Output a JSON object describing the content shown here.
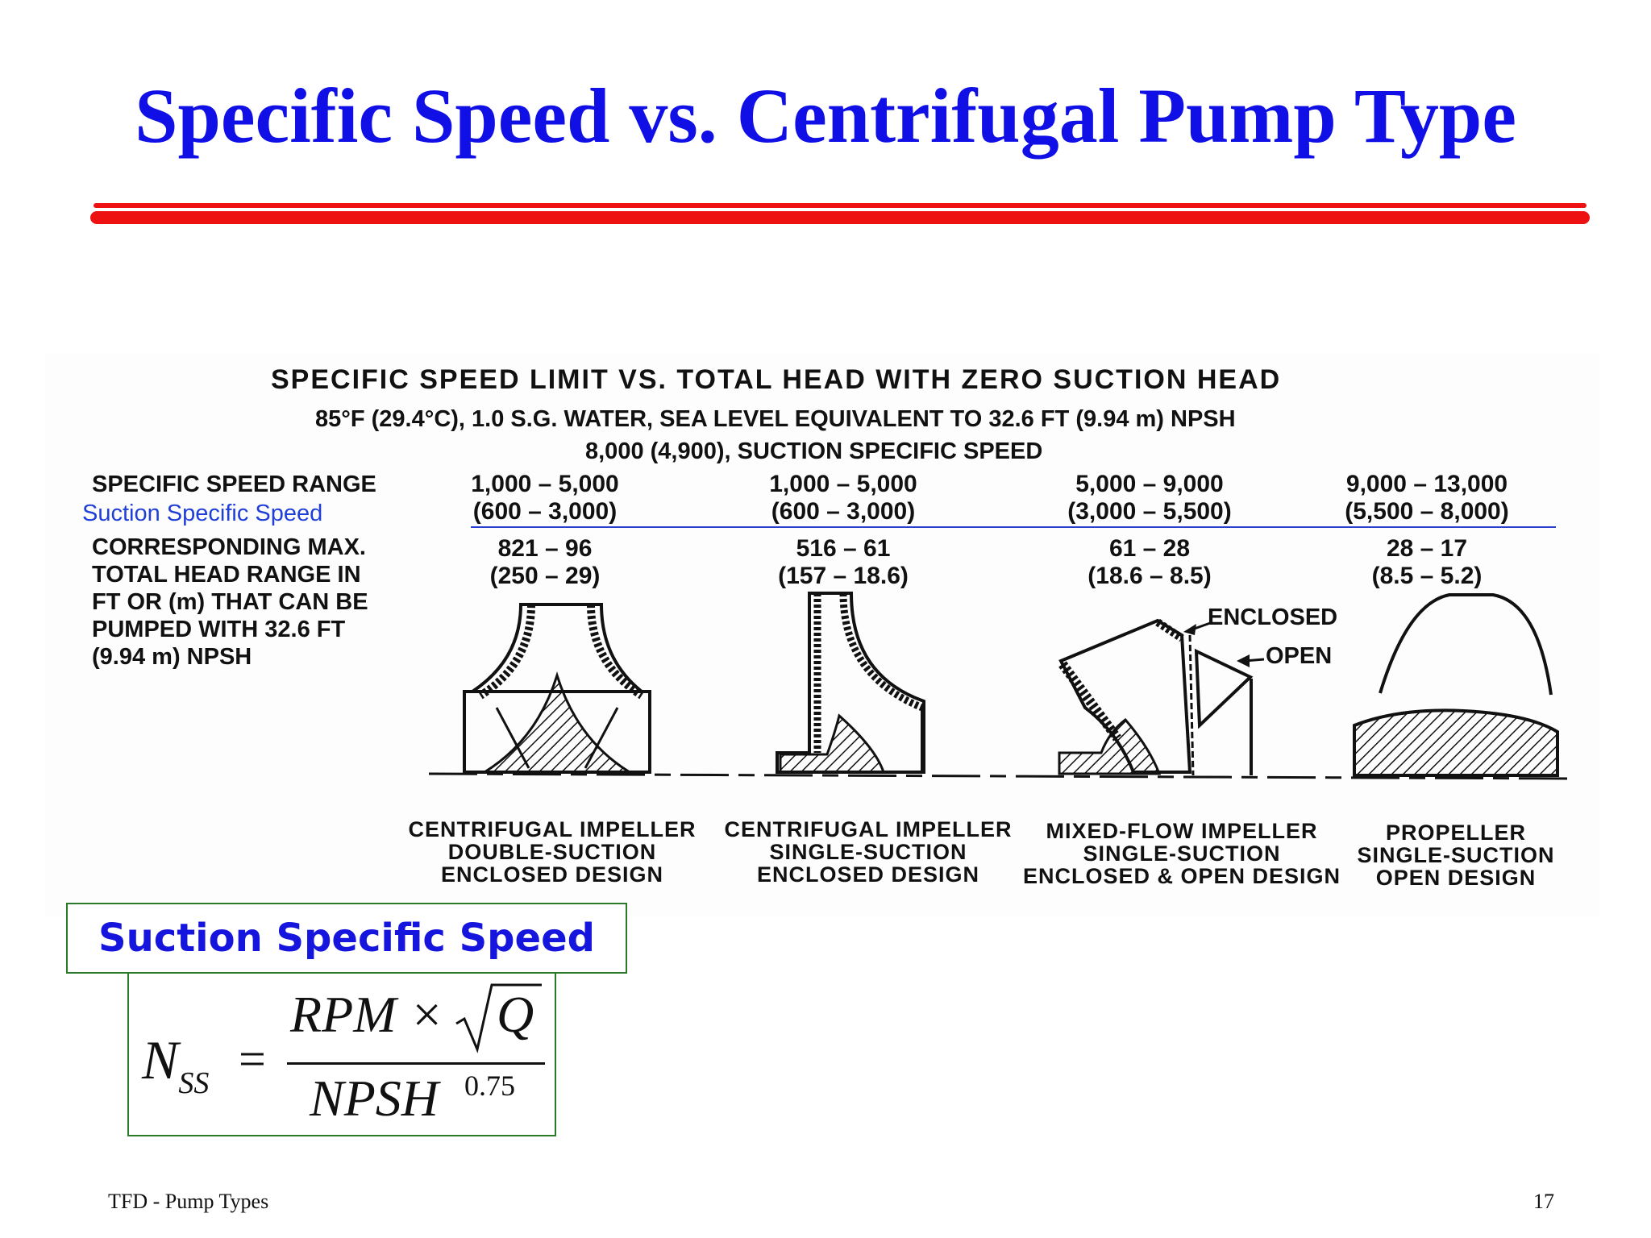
{
  "slide": {
    "title": "Specific Speed vs. Centrifugal Pump Type",
    "footer_left": "TFD - Pump Types",
    "page_number": "17"
  },
  "figure": {
    "heading": "SPECIFIC SPEED LIMIT VS. TOTAL HEAD WITH ZERO SUCTION HEAD",
    "subheading1": "85°F (29.4°C), 1.0 S.G. WATER, SEA LEVEL EQUIVALENT TO 32.6 FT (9.94 m) NPSH",
    "subheading2": "8,000 (4,900), SUCTION SPECIFIC SPEED",
    "row_labels": {
      "specific_speed_range": "SPECIFIC SPEED RANGE",
      "suction_specific_speed": "Suction Specific Speed",
      "head_range": [
        "CORRESPONDING MAX.",
        "TOTAL HEAD RANGE IN",
        "FT OR (m) THAT CAN BE",
        "PUMPED WITH 32.6 FT",
        "(9.94 m) NPSH"
      ]
    },
    "columns": [
      {
        "speed_range": "1,000 – 5,000",
        "suction_range": "(600 – 3,000)",
        "head_ft": "821 – 96",
        "head_m": "(250 – 29)",
        "caption": [
          "CENTRIFUGAL IMPELLER",
          "DOUBLE-SUCTION",
          "ENCLOSED   DESIGN"
        ]
      },
      {
        "speed_range": "1,000 – 5,000",
        "suction_range": "(600 – 3,000)",
        "head_ft": "516 – 61",
        "head_m": "(157 – 18.6)",
        "caption": [
          "CENTRIFUGAL IMPELLER",
          "SINGLE-SUCTION",
          "ENCLOSED   DESIGN"
        ]
      },
      {
        "speed_range": "5,000 – 9,000",
        "suction_range": "(3,000 – 5,500)",
        "head_ft": "61 – 28",
        "head_m": "(18.6 – 8.5)",
        "caption": [
          "MIXED-FLOW IMPELLER",
          "SINGLE-SUCTION",
          "ENCLOSED & OPEN DESIGN"
        ]
      },
      {
        "speed_range": "9,000 – 13,000",
        "suction_range": "(5,500 – 8,000)",
        "head_ft": "28 – 17",
        "head_m": "(8.5 – 5.2)",
        "caption": [
          "PROPELLER",
          "SINGLE-SUCTION",
          "OPEN  DESIGN"
        ]
      }
    ],
    "callouts": {
      "enclosed": "ENCLOSED",
      "open": "OPEN"
    }
  },
  "suction_box": {
    "title": "Suction Specific Speed",
    "formula": {
      "lhs": "N",
      "lhs_sub": "SS",
      "equals": "=",
      "numerator": "RPM ×",
      "radicand": "Q",
      "denominator": "NPSH",
      "exponent": "0.75"
    }
  }
}
